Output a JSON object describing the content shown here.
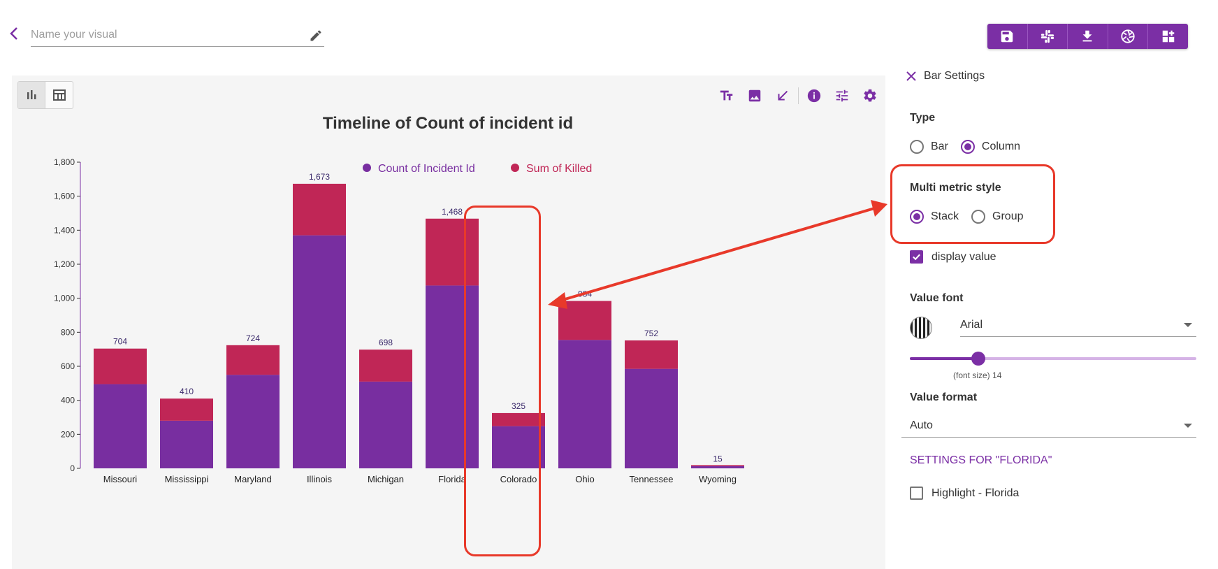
{
  "header": {
    "name_placeholder": "Name your visual",
    "name_value": ""
  },
  "toolbar": {
    "buttons": [
      "save-icon",
      "slack-icon",
      "download-icon",
      "aperture-icon",
      "add-widget-icon"
    ],
    "color": "#7b2fa5"
  },
  "chart_tools": [
    "text-size-icon",
    "image-icon",
    "collapse-arrow-icon",
    "info-icon",
    "tune-icon",
    "gear-icon"
  ],
  "chart_data": {
    "type": "bar",
    "title": "Timeline of Count of incident id",
    "categories": [
      "Missouri",
      "Mississippi",
      "Maryland",
      "Illinois",
      "Michigan",
      "Florida",
      "Colorado",
      "Ohio",
      "Tennessee",
      "Wyoming"
    ],
    "series": [
      {
        "name": "Count of Incident Id",
        "color": "#782ea0",
        "values": [
          495,
          280,
          550,
          1370,
          510,
          1075,
          248,
          755,
          585,
          13
        ]
      },
      {
        "name": "Sum of Killed",
        "color": "#c02656",
        "values": [
          209,
          130,
          174,
          303,
          188,
          393,
          77,
          229,
          167,
          2
        ]
      }
    ],
    "totals": [
      "704",
      "410",
      "724",
      "1,673",
      "698",
      "1,468",
      "325",
      "984",
      "752",
      "15"
    ],
    "ylim": [
      0,
      1800
    ],
    "yticks": [
      0,
      200,
      400,
      600,
      800,
      1000,
      1200,
      1400,
      1600,
      1800
    ],
    "ytick_labels": [
      "0",
      "200",
      "400",
      "600",
      "800",
      "1,000",
      "1,200",
      "1,400",
      "1,600",
      "1,800"
    ],
    "stacked": true,
    "legend_position": "top-center",
    "highlighted_category": "Florida"
  },
  "settings": {
    "header": "Bar Settings",
    "type_title": "Type",
    "type_options": [
      "Bar",
      "Column"
    ],
    "type_selected": "Column",
    "multi_metric_title": "Multi metric style",
    "multi_metric_options": [
      "Stack",
      "Group"
    ],
    "multi_metric_selected": "Stack",
    "display_value_label": "display value",
    "display_value_checked": true,
    "value_font_title": "Value font",
    "value_font": "Arial",
    "font_size_label": "(font size) 14",
    "font_size_level": 0.24,
    "value_format_title": "Value format",
    "value_format": "Auto",
    "settings_for_label": "SETTINGS FOR \"FLORIDA\"",
    "highlight_label": "Highlight - Florida",
    "highlight_checked": false,
    "accent_color": "#7b2fa5"
  },
  "annotation": {
    "color": "#e8392a"
  }
}
